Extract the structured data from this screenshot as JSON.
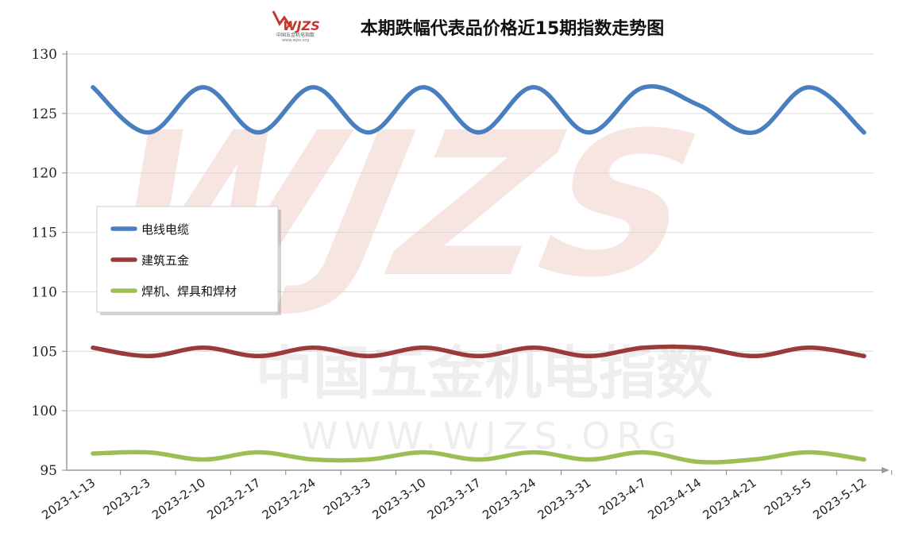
{
  "logo": {
    "text": "WJZS",
    "subtext": "中国五金机电指数",
    "url_text": "www.wjzs.org"
  },
  "watermark": {
    "brand": "WJZS",
    "cn": "中国五金机电指数",
    "url": "WWW.WJZS.ORG"
  },
  "colors": {
    "electric": "#4a7fbf",
    "hardware": "#9a3b3a",
    "welding": "#9bbf55",
    "grid": "#d9d9d9",
    "watermark_red": "#f3d9d6"
  },
  "chart_data": {
    "type": "line",
    "title": "本期跌幅代表品价格近15期指数走势图",
    "xlabel": "",
    "ylabel": "",
    "categories": [
      "2023-1-13",
      "2023-2-3",
      "2023-2-10",
      "2023-2-17",
      "2023-2-24",
      "2023-3-3",
      "2023-3-10",
      "2023-3-17",
      "2023-3-24",
      "2023-3-31",
      "2023-4-7",
      "2023-4-14",
      "2023-4-21",
      "2023-5-5",
      "2023-5-12"
    ],
    "ylim": [
      95,
      130
    ],
    "yticks": [
      95,
      100,
      105,
      110,
      115,
      120,
      125,
      130
    ],
    "grid": true,
    "legend_position": "left-middle",
    "series": [
      {
        "name": "电线电缆",
        "color": "#4a7fbf",
        "values": [
          127.2,
          123.4,
          127.2,
          123.4,
          127.2,
          123.4,
          127.2,
          123.4,
          127.2,
          123.4,
          127.2,
          125.7,
          123.4,
          127.2,
          123.4
        ]
      },
      {
        "name": "建筑五金",
        "color": "#9a3b3a",
        "values": [
          105.3,
          104.6,
          105.3,
          104.6,
          105.3,
          104.6,
          105.3,
          104.6,
          105.3,
          104.6,
          105.3,
          105.3,
          104.6,
          105.3,
          104.6
        ]
      },
      {
        "name": "焊机、焊具和焊材",
        "color": "#9bbf55",
        "values": [
          96.4,
          96.5,
          95.9,
          96.5,
          95.9,
          95.9,
          96.5,
          95.9,
          96.5,
          95.9,
          96.5,
          95.7,
          95.9,
          96.5,
          95.9
        ]
      }
    ]
  }
}
